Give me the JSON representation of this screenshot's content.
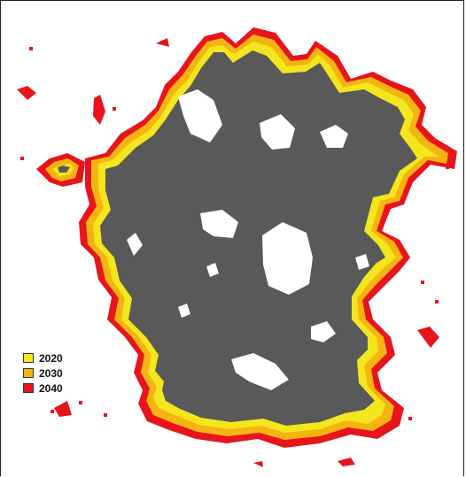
{
  "colors": {
    "urban": "#595959",
    "y2020": "#f4e61c",
    "y2030": "#f5b411",
    "y2040": "#e8141b",
    "background": "#ffffff"
  },
  "legend": {
    "items": [
      {
        "label": "2020",
        "color": "#f4e61c"
      },
      {
        "label": "2030",
        "color": "#f5b411"
      },
      {
        "label": "2040",
        "color": "#e8141b"
      }
    ]
  }
}
